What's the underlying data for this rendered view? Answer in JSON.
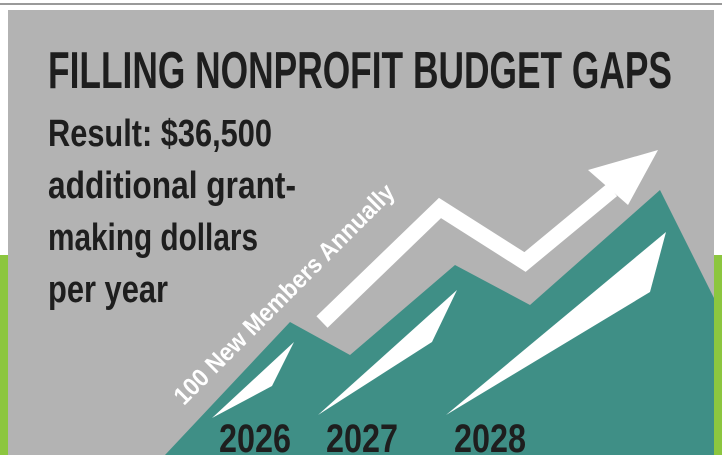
{
  "title": "FILLING NONPROFIT BUDGET GAPS",
  "result_lines": [
    "Result: $36,500",
    "additional grant-",
    "making dollars",
    "per year"
  ],
  "annotation": "100 New Members Annually",
  "years": [
    "2026",
    "2027",
    "2028"
  ]
}
